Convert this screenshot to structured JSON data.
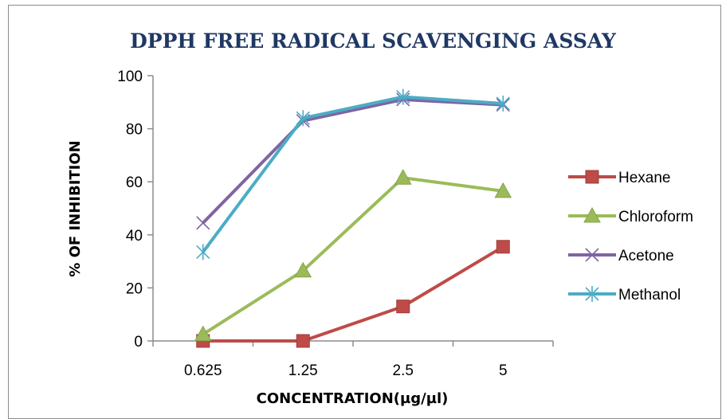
{
  "chart_data": {
    "type": "line",
    "title": "DPPH  FREE RADICAL  SCAVENGING ASSAY",
    "xlabel": "CONCENTRATION(µg/µl)",
    "ylabel": "% OF INHIBITION",
    "categories": [
      "0.625",
      "1.25",
      "2.5",
      "5"
    ],
    "ylim": [
      0,
      100
    ],
    "yticks": [
      0,
      20,
      40,
      60,
      80,
      100
    ],
    "grid": false,
    "legend_position": "right",
    "series": [
      {
        "name": "Hexane",
        "values": [
          0,
          0,
          13,
          35.5
        ],
        "color": "#be4b48",
        "marker": "square"
      },
      {
        "name": "Chloroform",
        "values": [
          2.5,
          26.5,
          61.5,
          56.5
        ],
        "color": "#9bbb59",
        "marker": "triangle"
      },
      {
        "name": "Acetone",
        "values": [
          44.5,
          83,
          91,
          89
        ],
        "color": "#8064a2",
        "marker": "x"
      },
      {
        "name": "Methanol",
        "values": [
          33.5,
          84,
          92,
          89.5
        ],
        "color": "#4bacc6",
        "marker": "asterisk"
      }
    ]
  }
}
